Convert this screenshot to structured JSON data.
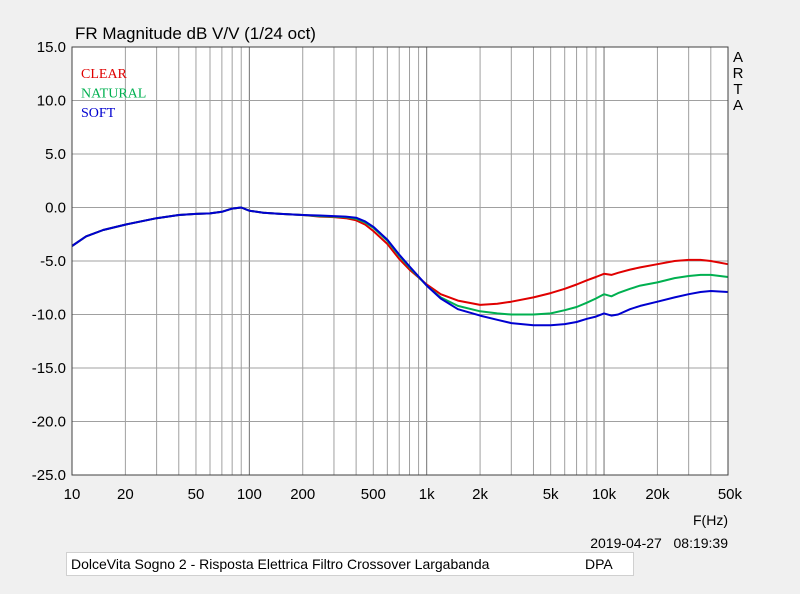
{
  "chart_data": {
    "type": "line",
    "title": "FR Magnitude dB V/V (1/24 oct)",
    "xlabel": "F(Hz)",
    "xscale": "log",
    "xlim": [
      10,
      50000
    ],
    "ylim": [
      -25,
      15
    ],
    "grid": true,
    "legend_position": "top-left",
    "side_label": "ARTA",
    "x_ticks": [
      {
        "value": 10,
        "label": "10"
      },
      {
        "value": 20,
        "label": "20"
      },
      {
        "value": 50,
        "label": "50"
      },
      {
        "value": 100,
        "label": "100"
      },
      {
        "value": 200,
        "label": "200"
      },
      {
        "value": 500,
        "label": "500"
      },
      {
        "value": 1000,
        "label": "1k"
      },
      {
        "value": 2000,
        "label": "2k"
      },
      {
        "value": 5000,
        "label": "5k"
      },
      {
        "value": 10000,
        "label": "10k"
      },
      {
        "value": 20000,
        "label": "20k"
      },
      {
        "value": 50000,
        "label": "50k"
      }
    ],
    "y_ticks": [
      {
        "value": 15,
        "label": "15.0"
      },
      {
        "value": 10,
        "label": "10.0"
      },
      {
        "value": 5,
        "label": "5.0"
      },
      {
        "value": 0,
        "label": "0.0"
      },
      {
        "value": -5,
        "label": "-5.0"
      },
      {
        "value": -10,
        "label": "-10.0"
      },
      {
        "value": -15,
        "label": "-15.0"
      },
      {
        "value": -20,
        "label": "-20.0"
      },
      {
        "value": -25,
        "label": "-25.0"
      }
    ],
    "series": [
      {
        "name": "CLEAR",
        "color": "#e00000",
        "points": [
          [
            10,
            -3.6
          ],
          [
            12,
            -2.7
          ],
          [
            15,
            -2.1
          ],
          [
            20,
            -1.6
          ],
          [
            30,
            -1.0
          ],
          [
            40,
            -0.7
          ],
          [
            50,
            -0.6
          ],
          [
            60,
            -0.55
          ],
          [
            70,
            -0.4
          ],
          [
            80,
            -0.1
          ],
          [
            90,
            0.0
          ],
          [
            100,
            -0.3
          ],
          [
            120,
            -0.5
          ],
          [
            150,
            -0.6
          ],
          [
            200,
            -0.7
          ],
          [
            250,
            -0.85
          ],
          [
            300,
            -0.9
          ],
          [
            350,
            -1.0
          ],
          [
            400,
            -1.2
          ],
          [
            450,
            -1.6
          ],
          [
            500,
            -2.2
          ],
          [
            600,
            -3.4
          ],
          [
            700,
            -4.8
          ],
          [
            800,
            -5.8
          ],
          [
            1000,
            -7.2
          ],
          [
            1200,
            -8.1
          ],
          [
            1500,
            -8.7
          ],
          [
            2000,
            -9.1
          ],
          [
            2500,
            -9.0
          ],
          [
            3000,
            -8.8
          ],
          [
            4000,
            -8.4
          ],
          [
            5000,
            -8.0
          ],
          [
            6000,
            -7.6
          ],
          [
            7000,
            -7.2
          ],
          [
            8000,
            -6.8
          ],
          [
            9000,
            -6.5
          ],
          [
            10000,
            -6.2
          ],
          [
            11000,
            -6.3
          ],
          [
            12000,
            -6.1
          ],
          [
            14000,
            -5.8
          ],
          [
            16000,
            -5.6
          ],
          [
            20000,
            -5.3
          ],
          [
            25000,
            -5.0
          ],
          [
            30000,
            -4.9
          ],
          [
            35000,
            -4.9
          ],
          [
            40000,
            -5.0
          ],
          [
            50000,
            -5.3
          ]
        ]
      },
      {
        "name": "NATURAL",
        "color": "#00b050",
        "points": [
          [
            10,
            -3.6
          ],
          [
            12,
            -2.7
          ],
          [
            15,
            -2.1
          ],
          [
            20,
            -1.6
          ],
          [
            30,
            -1.0
          ],
          [
            40,
            -0.7
          ],
          [
            50,
            -0.6
          ],
          [
            60,
            -0.55
          ],
          [
            70,
            -0.4
          ],
          [
            80,
            -0.1
          ],
          [
            90,
            0.0
          ],
          [
            100,
            -0.3
          ],
          [
            120,
            -0.5
          ],
          [
            150,
            -0.6
          ],
          [
            200,
            -0.7
          ],
          [
            250,
            -0.8
          ],
          [
            300,
            -0.85
          ],
          [
            350,
            -0.9
          ],
          [
            400,
            -1.05
          ],
          [
            450,
            -1.4
          ],
          [
            500,
            -1.9
          ],
          [
            600,
            -3.1
          ],
          [
            700,
            -4.5
          ],
          [
            800,
            -5.6
          ],
          [
            1000,
            -7.3
          ],
          [
            1200,
            -8.4
          ],
          [
            1500,
            -9.2
          ],
          [
            2000,
            -9.7
          ],
          [
            2500,
            -9.9
          ],
          [
            3000,
            -10.0
          ],
          [
            4000,
            -10.0
          ],
          [
            5000,
            -9.9
          ],
          [
            6000,
            -9.6
          ],
          [
            7000,
            -9.3
          ],
          [
            8000,
            -8.9
          ],
          [
            9000,
            -8.5
          ],
          [
            10000,
            -8.1
          ],
          [
            11000,
            -8.3
          ],
          [
            12000,
            -8.0
          ],
          [
            14000,
            -7.6
          ],
          [
            16000,
            -7.3
          ],
          [
            20000,
            -7.0
          ],
          [
            25000,
            -6.6
          ],
          [
            30000,
            -6.4
          ],
          [
            35000,
            -6.3
          ],
          [
            40000,
            -6.3
          ],
          [
            50000,
            -6.5
          ]
        ]
      },
      {
        "name": "SOFT",
        "color": "#0000d0",
        "points": [
          [
            10,
            -3.6
          ],
          [
            12,
            -2.7
          ],
          [
            15,
            -2.1
          ],
          [
            20,
            -1.6
          ],
          [
            30,
            -1.0
          ],
          [
            40,
            -0.7
          ],
          [
            50,
            -0.6
          ],
          [
            60,
            -0.55
          ],
          [
            70,
            -0.4
          ],
          [
            80,
            -0.1
          ],
          [
            90,
            0.0
          ],
          [
            100,
            -0.3
          ],
          [
            120,
            -0.5
          ],
          [
            150,
            -0.6
          ],
          [
            200,
            -0.7
          ],
          [
            250,
            -0.75
          ],
          [
            300,
            -0.8
          ],
          [
            350,
            -0.85
          ],
          [
            400,
            -0.95
          ],
          [
            450,
            -1.3
          ],
          [
            500,
            -1.8
          ],
          [
            600,
            -3.0
          ],
          [
            700,
            -4.4
          ],
          [
            800,
            -5.5
          ],
          [
            1000,
            -7.3
          ],
          [
            1200,
            -8.5
          ],
          [
            1500,
            -9.5
          ],
          [
            2000,
            -10.1
          ],
          [
            2500,
            -10.5
          ],
          [
            3000,
            -10.8
          ],
          [
            4000,
            -11.0
          ],
          [
            5000,
            -11.0
          ],
          [
            6000,
            -10.9
          ],
          [
            7000,
            -10.7
          ],
          [
            8000,
            -10.4
          ],
          [
            9000,
            -10.2
          ],
          [
            10000,
            -9.9
          ],
          [
            11000,
            -10.1
          ],
          [
            12000,
            -10.0
          ],
          [
            14000,
            -9.5
          ],
          [
            16000,
            -9.2
          ],
          [
            20000,
            -8.8
          ],
          [
            25000,
            -8.4
          ],
          [
            30000,
            -8.1
          ],
          [
            35000,
            -7.9
          ],
          [
            40000,
            -7.8
          ],
          [
            50000,
            -7.9
          ]
        ]
      }
    ]
  },
  "metadata": {
    "datetime": "2019-04-27   08:19:39",
    "description": "DolceVita Sogno 2 - Risposta Elettrica Filtro Crossover Largabanda",
    "tag": "DPA"
  }
}
